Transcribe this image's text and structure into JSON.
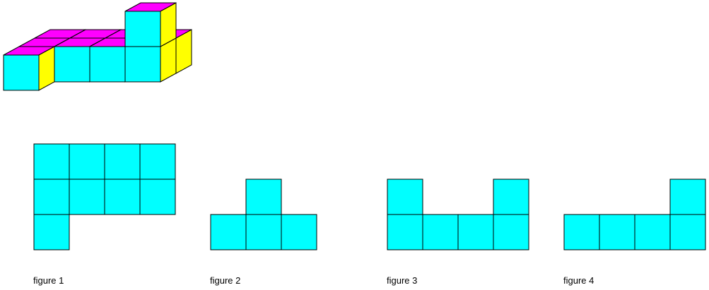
{
  "figures": [
    {
      "label": "figure 1"
    },
    {
      "label": "figure 2"
    },
    {
      "label": "figure 3"
    },
    {
      "label": "figure 4"
    }
  ]
}
